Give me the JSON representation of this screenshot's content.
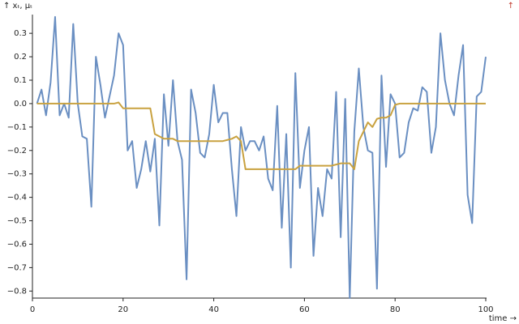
{
  "chart_data": {
    "type": "line",
    "y_label": "↑ xₜ, μₜ",
    "x_label": "time →",
    "corner_mark": "↑",
    "corner_mark_color": "#c0392b",
    "x": [
      1,
      2,
      3,
      4,
      5,
      6,
      7,
      8,
      9,
      10,
      11,
      12,
      13,
      14,
      15,
      16,
      17,
      18,
      19,
      20,
      21,
      22,
      23,
      24,
      25,
      26,
      27,
      28,
      29,
      30,
      31,
      32,
      33,
      34,
      35,
      36,
      37,
      38,
      39,
      40,
      41,
      42,
      43,
      44,
      45,
      46,
      47,
      48,
      49,
      50,
      51,
      52,
      53,
      54,
      55,
      56,
      57,
      58,
      59,
      60,
      61,
      62,
      63,
      64,
      65,
      66,
      67,
      68,
      69,
      70,
      71,
      72,
      73,
      74,
      75,
      76,
      77,
      78,
      79,
      80,
      81,
      82,
      83,
      84,
      85,
      86,
      87,
      88,
      89,
      90,
      91,
      92,
      93,
      94,
      95,
      96,
      97,
      98,
      99,
      100
    ],
    "series": [
      {
        "color": "#6a8fc2",
        "values": [
          0.0,
          0.06,
          -0.05,
          0.09,
          0.37,
          -0.05,
          0.0,
          -0.06,
          0.34,
          0.0,
          -0.14,
          -0.15,
          -0.44,
          0.2,
          0.08,
          -0.06,
          0.03,
          0.12,
          0.3,
          0.25,
          -0.2,
          -0.16,
          -0.36,
          -0.28,
          -0.16,
          -0.29,
          -0.15,
          -0.52,
          0.04,
          -0.18,
          0.1,
          -0.16,
          -0.24,
          -0.75,
          0.06,
          -0.04,
          -0.21,
          -0.23,
          -0.13,
          0.08,
          -0.08,
          -0.04,
          -0.04,
          -0.28,
          -0.48,
          -0.1,
          -0.2,
          -0.16,
          -0.16,
          -0.2,
          -0.14,
          -0.32,
          -0.37,
          -0.01,
          -0.53,
          -0.13,
          -0.7,
          0.13,
          -0.36,
          -0.2,
          -0.1,
          -0.65,
          -0.36,
          -0.48,
          -0.28,
          -0.32,
          0.05,
          -0.57,
          0.02,
          -0.83,
          -0.12,
          0.15,
          -0.1,
          -0.2,
          -0.21,
          -0.79,
          0.12,
          -0.27,
          0.04,
          0.0,
          -0.23,
          -0.21,
          -0.08,
          -0.02,
          -0.03,
          0.07,
          0.05,
          -0.21,
          -0.1,
          0.3,
          0.1,
          0.0,
          -0.05,
          0.12,
          0.25,
          -0.39,
          -0.51,
          0.03,
          0.05,
          0.2
        ]
      },
      {
        "color": "#c9a240",
        "values": [
          0,
          0,
          0,
          0,
          0,
          0,
          0,
          0,
          0,
          0,
          0,
          0,
          0,
          0,
          0,
          0,
          0,
          0,
          0.005,
          -0.02,
          -0.02,
          -0.02,
          -0.02,
          -0.02,
          -0.02,
          -0.02,
          -0.13,
          -0.14,
          -0.15,
          -0.15,
          -0.15,
          -0.16,
          -0.16,
          -0.16,
          -0.16,
          -0.16,
          -0.16,
          -0.16,
          -0.16,
          -0.16,
          -0.16,
          -0.16,
          -0.155,
          -0.15,
          -0.14,
          -0.16,
          -0.28,
          -0.28,
          -0.28,
          -0.28,
          -0.28,
          -0.28,
          -0.28,
          -0.28,
          -0.28,
          -0.28,
          -0.28,
          -0.28,
          -0.265,
          -0.265,
          -0.265,
          -0.265,
          -0.265,
          -0.265,
          -0.265,
          -0.265,
          -0.26,
          -0.255,
          -0.255,
          -0.255,
          -0.28,
          -0.16,
          -0.12,
          -0.08,
          -0.1,
          -0.065,
          -0.06,
          -0.06,
          -0.05,
          -0.005,
          0,
          0,
          0,
          0,
          0,
          0,
          0,
          0,
          0,
          0,
          0,
          0,
          0,
          0,
          0,
          0,
          0,
          0,
          0,
          0
        ]
      }
    ],
    "xlim": [
      0,
      100
    ],
    "xticks": [
      0,
      20,
      40,
      60,
      80,
      100
    ],
    "ylim": [
      -0.83,
      0.38
    ],
    "yticks": [
      0.3,
      0.2,
      0.1,
      {
        "value": 0,
        "label": "0.0"
      },
      {
        "value": -0.1,
        "label": "−0.1"
      },
      {
        "value": -0.2,
        "label": "−0.2"
      },
      {
        "value": -0.3,
        "label": "−0.3"
      },
      {
        "value": -0.4,
        "label": "−0.4"
      },
      {
        "value": -0.5,
        "label": "−0.5"
      },
      {
        "value": -0.6,
        "label": "−0.6"
      },
      {
        "value": -0.7,
        "label": "−0.7"
      },
      {
        "value": -0.8,
        "label": "−0.8"
      }
    ]
  }
}
